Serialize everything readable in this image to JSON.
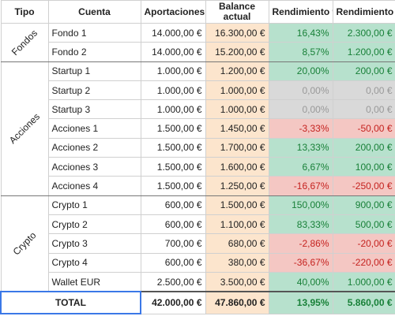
{
  "headers": {
    "tipo": "Tipo",
    "cuenta": "Cuenta",
    "aportaciones": "Aportaciones",
    "balance": "Balance actual",
    "rend_pct": "Rendimiento %",
    "rend_eur": "Rendimiento €"
  },
  "groups": {
    "fondos": "Fondos",
    "acciones": "Acciones",
    "crypto": "Crypto"
  },
  "rows": [
    {
      "cuenta": "Fondo 1",
      "aportaciones": "14.000,00 €",
      "balance": "16.300,00 €",
      "rend_pct": "16,43%",
      "rend_eur": "2.300,00 €"
    },
    {
      "cuenta": "Fondo 2",
      "aportaciones": "14.000,00 €",
      "balance": "15.200,00 €",
      "rend_pct": "8,57%",
      "rend_eur": "1.200,00 €"
    },
    {
      "cuenta": "Startup 1",
      "aportaciones": "1.000,00 €",
      "balance": "1.200,00 €",
      "rend_pct": "20,00%",
      "rend_eur": "200,00 €"
    },
    {
      "cuenta": "Startup 2",
      "aportaciones": "1.000,00 €",
      "balance": "1.000,00 €",
      "rend_pct": "0,00%",
      "rend_eur": "0,00 €"
    },
    {
      "cuenta": "Startup 3",
      "aportaciones": "1.000,00 €",
      "balance": "1.000,00 €",
      "rend_pct": "0,00%",
      "rend_eur": "0,00 €"
    },
    {
      "cuenta": "Acciones 1",
      "aportaciones": "1.500,00 €",
      "balance": "1.450,00 €",
      "rend_pct": "-3,33%",
      "rend_eur": "-50,00 €"
    },
    {
      "cuenta": "Acciones 2",
      "aportaciones": "1.500,00 €",
      "balance": "1.700,00 €",
      "rend_pct": "13,33%",
      "rend_eur": "200,00 €"
    },
    {
      "cuenta": "Acciones 3",
      "aportaciones": "1.500,00 €",
      "balance": "1.600,00 €",
      "rend_pct": "6,67%",
      "rend_eur": "100,00 €"
    },
    {
      "cuenta": "Acciones 4",
      "aportaciones": "1.500,00 €",
      "balance": "1.250,00 €",
      "rend_pct": "-16,67%",
      "rend_eur": "-250,00 €"
    },
    {
      "cuenta": "Crypto 1",
      "aportaciones": "600,00 €",
      "balance": "1.500,00 €",
      "rend_pct": "150,00%",
      "rend_eur": "900,00 €"
    },
    {
      "cuenta": "Crypto 2",
      "aportaciones": "600,00 €",
      "balance": "1.100,00 €",
      "rend_pct": "83,33%",
      "rend_eur": "500,00 €"
    },
    {
      "cuenta": "Crypto 3",
      "aportaciones": "700,00 €",
      "balance": "680,00 €",
      "rend_pct": "-2,86%",
      "rend_eur": "-20,00 €"
    },
    {
      "cuenta": "Crypto 4",
      "aportaciones": "600,00 €",
      "balance": "380,00 €",
      "rend_pct": "-36,67%",
      "rend_eur": "-220,00 €"
    },
    {
      "cuenta": "Wallet EUR",
      "aportaciones": "2.500,00 €",
      "balance": "3.500,00 €",
      "rend_pct": "40,00%",
      "rend_eur": "1.000,00 €"
    }
  ],
  "total": {
    "label": "TOTAL",
    "aportaciones": "42.000,00 €",
    "balance": "47.860,00 €",
    "rend_pct": "13,95%",
    "rend_eur": "5.860,00 €"
  },
  "colors": {
    "balance_bg": "#fce5cd",
    "positive_bg": "#b7e1cd",
    "positive_text": "#188038",
    "negative_bg": "#f4c7c3",
    "negative_text": "#c5221f",
    "zero_bg": "#d9d9d9",
    "zero_text": "#999999",
    "selection_border": "#3b78e7"
  }
}
